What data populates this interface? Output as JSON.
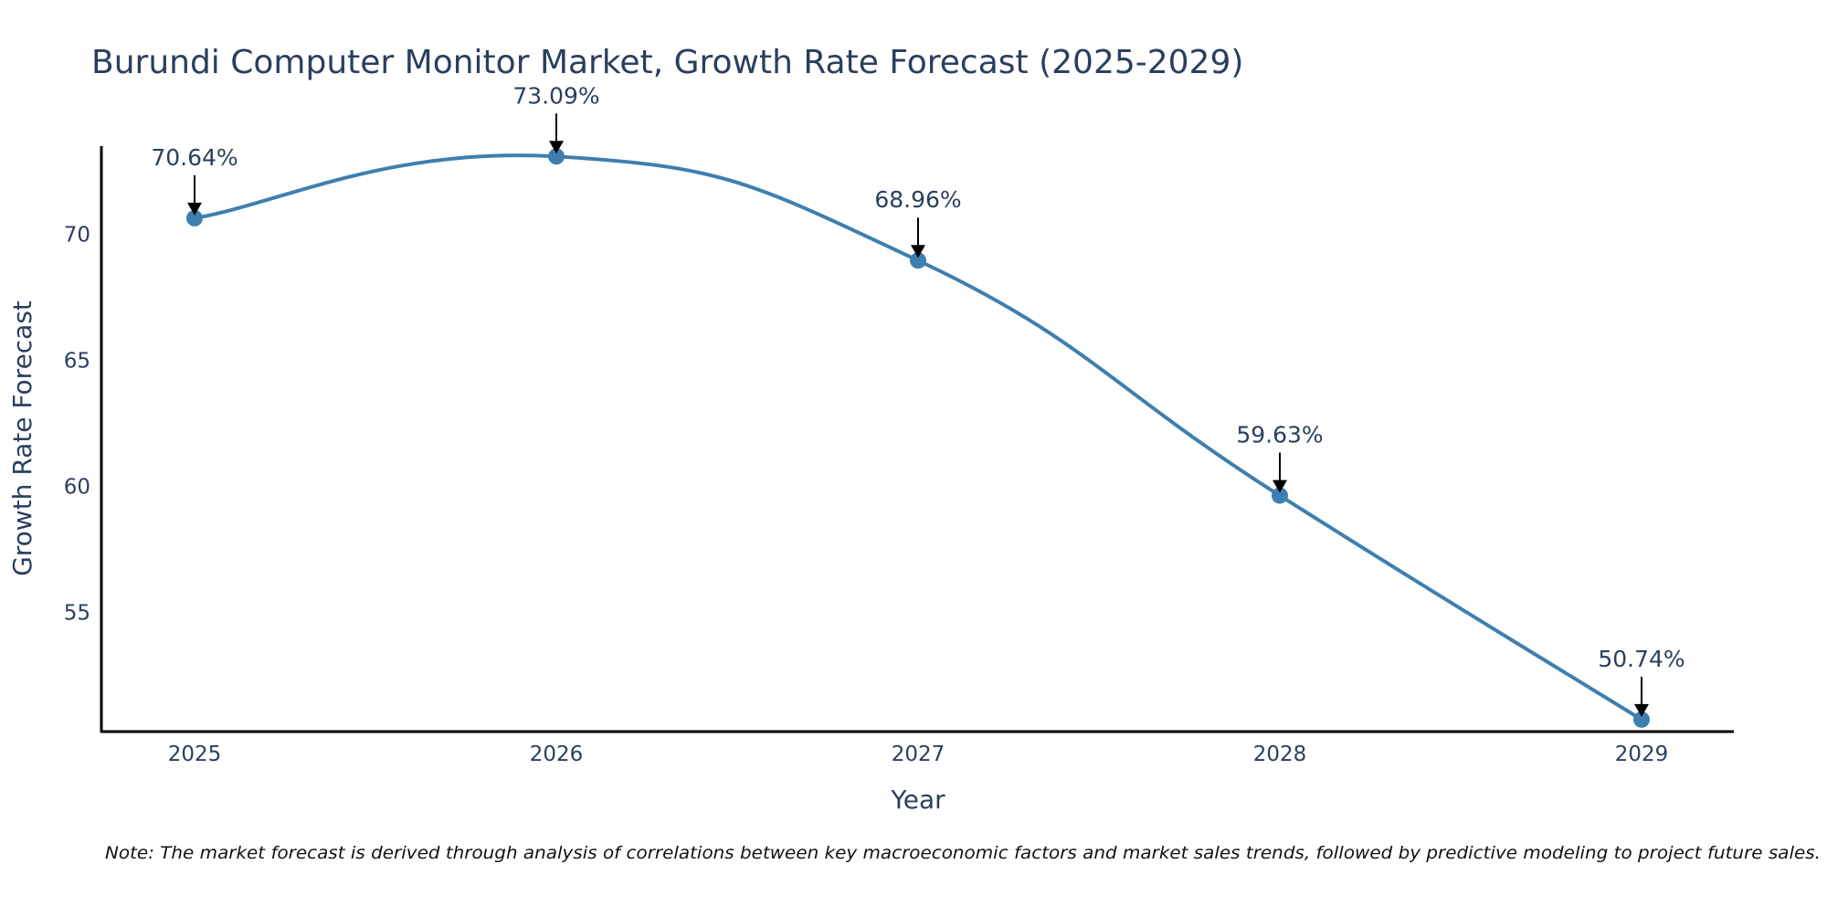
{
  "chart_data": {
    "type": "line",
    "title": "Burundi Computer Monitor Market, Growth Rate Forecast (2025-2029)",
    "xlabel": "Year",
    "ylabel": "Growth Rate Forecast",
    "categories": [
      "2025",
      "2026",
      "2027",
      "2028",
      "2029"
    ],
    "series": [
      {
        "name": "Growth Rate Forecast",
        "values": [
          70.64,
          73.09,
          68.96,
          59.63,
          50.74
        ],
        "labels": [
          "70.64%",
          "73.09%",
          "68.96%",
          "59.63%",
          "50.74%"
        ],
        "color": "#3f7faf"
      }
    ],
    "yticks": [
      55,
      60,
      65,
      70
    ],
    "ylim": [
      50.3,
      73.5
    ],
    "line_shape": "spline",
    "grid": false,
    "annotation_arrow_color": "#000000",
    "note": "Note: The market forecast is derived through analysis of correlations between key macroeconomic factors and market sales trends, followed by predictive modeling to project future sales."
  }
}
